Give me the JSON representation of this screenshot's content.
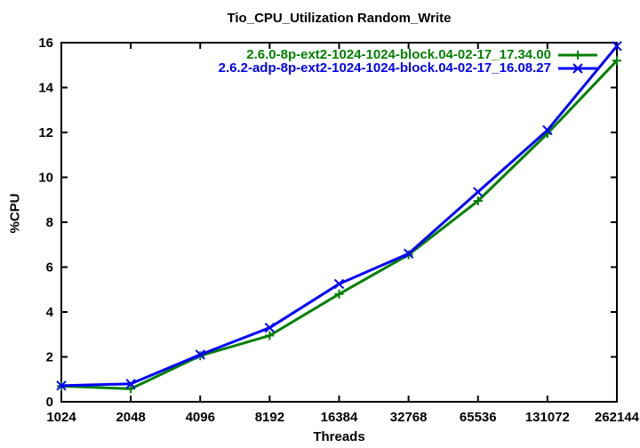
{
  "chart_data": {
    "type": "line",
    "title": "Tio_CPU_Utilization Random_Write",
    "xlabel": "Threads",
    "ylabel": "%CPU",
    "x_scale": "log2",
    "categories": [
      1024,
      2048,
      4096,
      8192,
      16384,
      32768,
      65536,
      131072,
      262144
    ],
    "x_ticklabels": [
      "1024",
      "2048",
      "4096",
      "8192",
      "16384",
      "32768",
      "65536",
      "131072",
      "262144"
    ],
    "y_ticks": [
      0,
      2,
      4,
      6,
      8,
      10,
      12,
      14,
      16
    ],
    "ylim": [
      0,
      16
    ],
    "grid": false,
    "legend_position": "top-right-inside",
    "axis_color": "#000000",
    "text_color": "#000000",
    "background": "#ffffff",
    "series": [
      {
        "name": "2.6.0-8p-ext2-1024-1024-block.04-02-17_17.34.00",
        "color": "#008000",
        "marker": "plus",
        "values": [
          0.7,
          0.58,
          2.05,
          2.95,
          4.8,
          6.55,
          8.95,
          11.95,
          15.2
        ]
      },
      {
        "name": "2.6.2-adp-8p-ext2-1024-1024-block.04-02-17_16.08.27",
        "color": "#0000ff",
        "marker": "x",
        "values": [
          0.72,
          0.8,
          2.1,
          3.3,
          5.25,
          6.6,
          9.35,
          12.1,
          15.85
        ]
      }
    ]
  }
}
